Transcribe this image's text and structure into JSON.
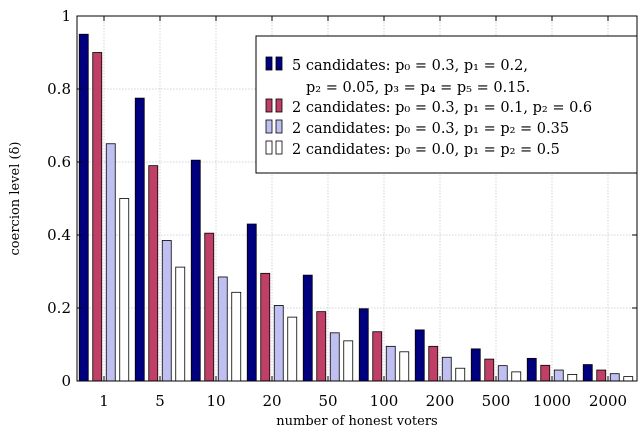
{
  "chart_data": {
    "type": "bar",
    "xlabel": "number of honest voters",
    "ylabel": "coercion level (δ)",
    "ylim": [
      0,
      1
    ],
    "yticks": [
      "0",
      "0.2",
      "0.4",
      "0.6",
      "0.8",
      "1"
    ],
    "grid": true,
    "legend_position": "top-right",
    "categories": [
      "1",
      "5",
      "10",
      "20",
      "50",
      "100",
      "200",
      "500",
      "1000",
      "2000"
    ],
    "series": [
      {
        "name": "5 candidates: p0 = 0.3, p1 = 0.2, p2 = 0.05, p3 = p4 = p5 = 0.15.",
        "legend_lines": [
          "5 candidates: p₀ = 0.3, p₁ = 0.2,",
          "p₂ = 0.05, p₃ = p₄ = p₅ = 0.15."
        ],
        "color": "#00007f",
        "values": [
          0.95,
          0.775,
          0.605,
          0.43,
          0.29,
          0.198,
          0.14,
          0.088,
          0.062,
          0.045
        ]
      },
      {
        "name": "2 candidates: p0 = 0.3, p1 = 0.1, p2 = 0.6",
        "legend_lines": [
          "2 candidates: p₀ = 0.3, p₁ = 0.1, p₂ = 0.6"
        ],
        "color": "#bf3f66",
        "values": [
          0.9,
          0.59,
          0.405,
          0.295,
          0.19,
          0.135,
          0.095,
          0.06,
          0.043,
          0.03
        ]
      },
      {
        "name": "2 candidates: p0 = 0.3, p1 = p2 = 0.35",
        "legend_lines": [
          "2 candidates: p₀ = 0.3, p₁ = p₂ = 0.35"
        ],
        "color": "#bfbff2",
        "values": [
          0.65,
          0.385,
          0.285,
          0.207,
          0.132,
          0.095,
          0.065,
          0.042,
          0.03,
          0.02
        ]
      },
      {
        "name": "2 candidates: p0 = 0.0, p1 = p2 = 0.5",
        "legend_lines": [
          "2 candidates: p₀ = 0.0, p₁ = p₂ = 0.5"
        ],
        "color": "#ffffff",
        "values": [
          0.5,
          0.312,
          0.243,
          0.175,
          0.11,
          0.08,
          0.035,
          0.025,
          0.018,
          0.012
        ]
      }
    ]
  }
}
